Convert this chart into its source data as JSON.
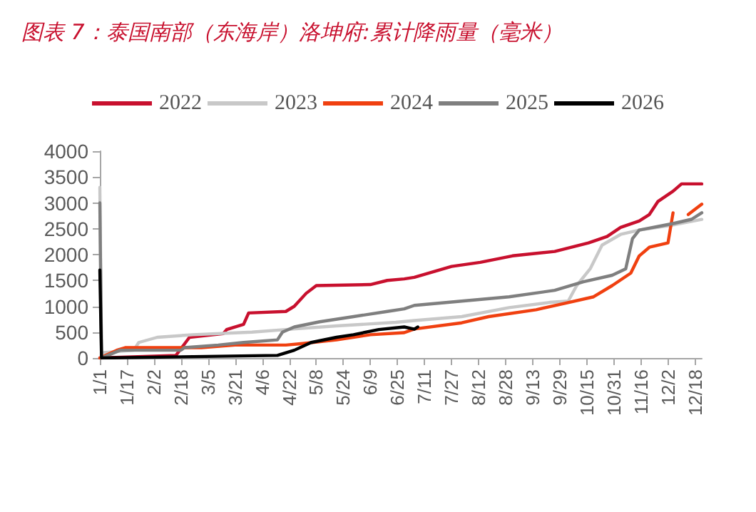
{
  "chart_data": {
    "type": "line",
    "title": "图表 7：泰国南部（东海岸）洛坤府:累计降雨量（毫米）",
    "xlim": [
      "--01-01",
      "--12-22"
    ],
    "xticks": [
      {
        "value": "--01-01",
        "label": "1/1"
      },
      {
        "value": "--01-17",
        "label": "1/17"
      },
      {
        "value": "--02-02",
        "label": "2/2"
      },
      {
        "value": "--02-18",
        "label": "2/18"
      },
      {
        "value": "--03-05",
        "label": "3/5"
      },
      {
        "value": "--03-21",
        "label": "3/21"
      },
      {
        "value": "--04-06",
        "label": "4/6"
      },
      {
        "value": "--04-22",
        "label": "4/22"
      },
      {
        "value": "--05-08",
        "label": "5/8"
      },
      {
        "value": "--05-24",
        "label": "5/24"
      },
      {
        "value": "--06-09",
        "label": "6/9"
      },
      {
        "value": "--06-25",
        "label": "6/25"
      },
      {
        "value": "--07-11",
        "label": "7/11"
      },
      {
        "value": "--07-27",
        "label": "7/27"
      },
      {
        "value": "--08-12",
        "label": "8/12"
      },
      {
        "value": "--08-28",
        "label": "8/28"
      },
      {
        "value": "--09-13",
        "label": "9/13"
      },
      {
        "value": "--09-29",
        "label": "9/29"
      },
      {
        "value": "--10-15",
        "label": "10/15"
      },
      {
        "value": "--10-31",
        "label": "10/31"
      },
      {
        "value": "--11-16",
        "label": "11/16"
      },
      {
        "value": "--12-02",
        "label": "12/2"
      },
      {
        "value": "--12-18",
        "label": "12/18"
      }
    ],
    "ylim": [
      0,
      4000
    ],
    "yticks": [
      0,
      500,
      1000,
      1500,
      2000,
      2500,
      3000,
      3500,
      4000
    ],
    "grid": false,
    "legend": "top",
    "marker": "none",
    "line_style": "solid",
    "series": [
      {
        "name": "2022",
        "color": "#c8102e",
        "x": [
          "--01-01",
          "--02-15",
          "--02-23",
          "--03-14",
          "--03-16",
          "--03-26",
          "--03-29",
          "--04-20",
          "--04-25",
          "--05-02",
          "--05-08",
          "--06-09",
          "--06-19",
          "--06-29",
          "--07-05",
          "--07-27",
          "--08-13",
          "--09-01",
          "--09-26",
          "--10-16",
          "--10-27",
          "--11-04",
          "--11-15",
          "--11-21",
          "--11-26",
          "--12-05",
          "--12-10",
          "--12-22"
        ],
        "values": [
          0,
          50,
          400,
          470,
          550,
          650,
          870,
          900,
          1000,
          1250,
          1400,
          1420,
          1500,
          1530,
          1560,
          1770,
          1850,
          1975,
          2060,
          2225,
          2350,
          2525,
          2650,
          2775,
          3025,
          3225,
          3367,
          3367
        ]
      },
      {
        "name": "2023",
        "color": "#c8c8c8",
        "x": [
          "--01-01",
          "--01-02",
          "--01-21",
          "--01-24",
          "--02-04",
          "--02-25",
          "--03-31",
          "--04-20",
          "--05-20",
          "--06-24",
          "--07-05",
          "--08-02",
          "--08-30",
          "--09-23",
          "--10-04",
          "--10-09",
          "--10-17",
          "--10-24",
          "--11-04",
          "--11-15",
          "--12-03",
          "--12-22"
        ],
        "values": [
          3300,
          100,
          150,
          300,
          400,
          450,
          500,
          550,
          620,
          690,
          725,
          800,
          975,
          1075,
          1100,
          1400,
          1725,
          2183,
          2390,
          2475,
          2560,
          2680
        ]
      },
      {
        "name": "2024",
        "color": "#f04010",
        "x": [
          "--01-01",
          "--01-11",
          "--01-16",
          "--03-01",
          "--03-21",
          "--04-20",
          "--04-30",
          "--05-20",
          "--06-09",
          "--06-29",
          "--07-05",
          "--08-02",
          "--08-18",
          "--09-15",
          "--10-02",
          "--10-19",
          "--10-30",
          "--11-10",
          "--11-15",
          "--11-21",
          "--12-02",
          "--12-05",
          "--12-07",
          "--12-14",
          "--12-22"
        ],
        "values": [
          0,
          150,
          200,
          200,
          250,
          250,
          280,
          350,
          450,
          490,
          560,
          680,
          800,
          933,
          1058,
          1183,
          1400,
          1642,
          1975,
          2142,
          2225,
          2808,
          null,
          2775,
          2975
        ]
      },
      {
        "name": "2025",
        "color": "#7f7f7f",
        "x": [
          "--01-01",
          "--01-02",
          "--01-13",
          "--02-18",
          "--02-20",
          "--03-11",
          "--03-26",
          "--04-15",
          "--04-18",
          "--04-25",
          "--05-10",
          "--05-30",
          "--06-19",
          "--06-29",
          "--07-05",
          "--08-02",
          "--08-30",
          "--09-26",
          "--10-13",
          "--10-30",
          "--11-07",
          "--11-11",
          "--11-15",
          "--12-05",
          "--12-16",
          "--12-22"
        ],
        "values": [
          3000,
          0,
          150,
          150,
          200,
          250,
          300,
          350,
          500,
          600,
          700,
          800,
          900,
          950,
          1017,
          1100,
          1183,
          1308,
          1475,
          1600,
          1725,
          2308,
          2475,
          2600,
          2683,
          2808
        ]
      },
      {
        "name": "2026",
        "color": "#000000",
        "x": [
          "--01-01",
          "--01-02",
          "--04-15",
          "--04-25",
          "--05-05",
          "--05-20",
          "--05-30",
          "--06-14",
          "--06-29",
          "--07-05",
          "--07-07"
        ],
        "values": [
          1700,
          0,
          50,
          150,
          300,
          400,
          450,
          550,
          600,
          558,
          600
        ]
      }
    ]
  }
}
